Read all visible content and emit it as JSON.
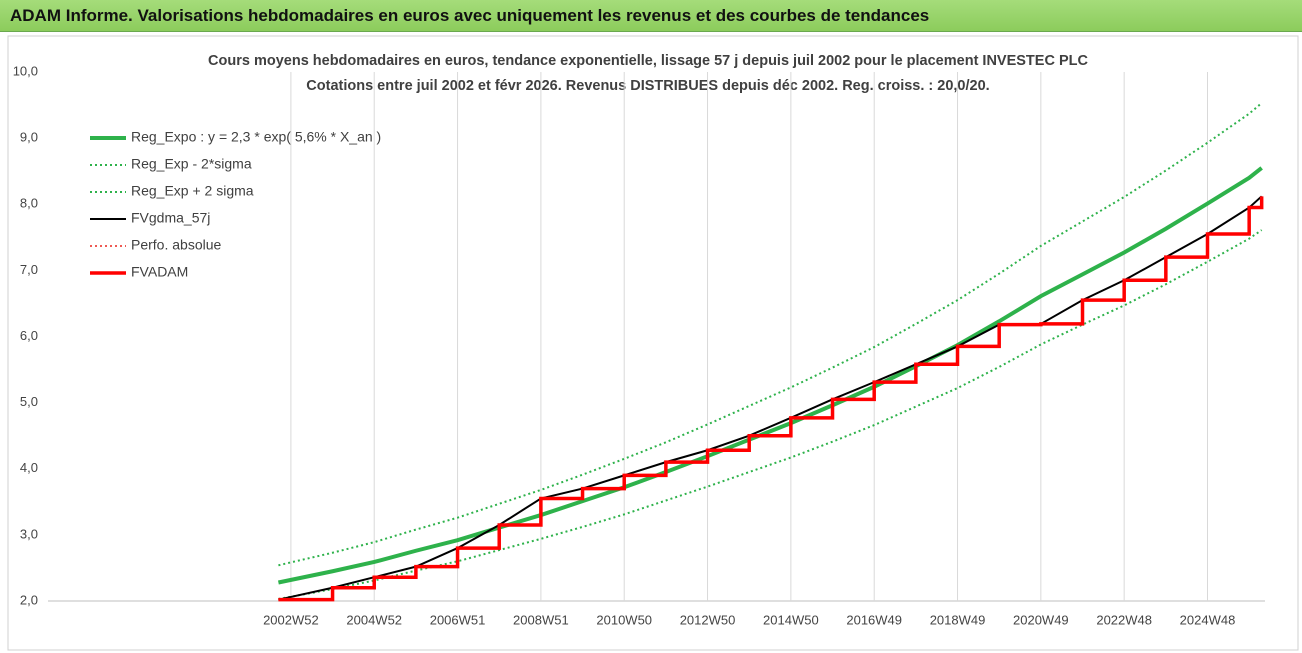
{
  "header": "ADAM Informe. Valorisations hebdomadaires en euros avec uniquement les revenus et des courbes de tendances",
  "chart_data": {
    "type": "line",
    "title": "Cours moyens hebdomadaires en euros, tendance exponentielle, lissage 57 j depuis juil 2002 pour le placement INVESTEC PLC",
    "subtitle": "Cotations entre juil 2002 et févr 2026.  Revenus DISTRIBUES depuis déc 2002. Reg. croiss. : 20,0/20.",
    "x": [
      2002.7,
      2004,
      2005,
      2006,
      2007,
      2008,
      2009,
      2010,
      2011,
      2012,
      2013,
      2014,
      2015,
      2016,
      2017,
      2018,
      2019,
      2020,
      2021,
      2022,
      2023,
      2024,
      2025,
      2026,
      2026.3
    ],
    "xlim": [
      1997.17,
      2026.38
    ],
    "xticks": [
      {
        "value": 2003,
        "label": "2002W52"
      },
      {
        "value": 2005,
        "label": "2004W52"
      },
      {
        "value": 2007,
        "label": "2006W51"
      },
      {
        "value": 2009,
        "label": "2008W51"
      },
      {
        "value": 2011,
        "label": "2010W50"
      },
      {
        "value": 2013,
        "label": "2012W50"
      },
      {
        "value": 2015,
        "label": "2014W50"
      },
      {
        "value": 2017,
        "label": "2016W49"
      },
      {
        "value": 2019,
        "label": "2018W49"
      },
      {
        "value": 2021,
        "label": "2020W49"
      },
      {
        "value": 2023,
        "label": "2022W48"
      },
      {
        "value": 2025,
        "label": "2024W48"
      }
    ],
    "ylim": [
      2,
      10
    ],
    "yticks": [
      {
        "value": 2,
        "label": "2,0"
      },
      {
        "value": 3,
        "label": "3,0"
      },
      {
        "value": 4,
        "label": "4,0"
      },
      {
        "value": 5,
        "label": "5,0"
      },
      {
        "value": 6,
        "label": "6,0"
      },
      {
        "value": 7,
        "label": "7,0"
      },
      {
        "value": 8,
        "label": "8,0"
      },
      {
        "value": 9,
        "label": "9,0"
      },
      {
        "value": 10,
        "label": "10,0"
      }
    ],
    "grid": true,
    "legend": "upper left",
    "series": [
      {
        "name": "Reg_Expo : y = 2,3 * exp( 5,6% *  X_an )",
        "color": "#2eb24b",
        "style": "solid",
        "width": 4,
        "values": [
          2.28,
          2.45,
          2.59,
          2.76,
          2.92,
          3.11,
          3.3,
          3.51,
          3.72,
          3.95,
          4.19,
          4.44,
          4.69,
          4.96,
          5.24,
          5.55,
          5.87,
          6.23,
          6.61,
          6.94,
          7.27,
          7.63,
          8.01,
          8.4,
          8.55
        ]
      },
      {
        "name": "Reg_Exp - 2*sigma",
        "color": "#2eb24b",
        "style": "dotted",
        "width": 2,
        "values": [
          2.03,
          2.18,
          2.31,
          2.46,
          2.6,
          2.77,
          2.94,
          3.12,
          3.31,
          3.52,
          3.73,
          3.95,
          4.17,
          4.41,
          4.66,
          4.94,
          5.22,
          5.54,
          5.88,
          6.18,
          6.47,
          6.79,
          7.13,
          7.48,
          7.61
        ]
      },
      {
        "name": "Reg_Exp + 2 sigma",
        "color": "#2eb24b",
        "style": "dotted",
        "width": 2,
        "values": [
          2.54,
          2.73,
          2.89,
          3.08,
          3.26,
          3.47,
          3.68,
          3.91,
          4.15,
          4.4,
          4.67,
          4.95,
          5.23,
          5.53,
          5.84,
          6.19,
          6.55,
          6.95,
          7.37,
          7.74,
          8.11,
          8.51,
          8.93,
          9.37,
          9.53
        ]
      },
      {
        "name": "FVgdma_57j",
        "color": "#000000",
        "style": "solid",
        "width": 2,
        "values": [
          2.02,
          2.2,
          2.36,
          2.52,
          2.8,
          3.15,
          3.55,
          3.7,
          3.9,
          4.1,
          4.28,
          4.5,
          4.77,
          5.05,
          5.31,
          5.58,
          5.85,
          6.18,
          6.19,
          6.55,
          6.85,
          7.2,
          7.55,
          7.95,
          8.12
        ]
      },
      {
        "name": "Perfo. absolue",
        "color": "#e8231c",
        "style": "dotted",
        "width": 1.5,
        "step": true,
        "values": [
          2.02,
          2.2,
          2.36,
          2.52,
          2.8,
          3.15,
          3.55,
          3.7,
          3.9,
          4.1,
          4.28,
          4.5,
          4.77,
          5.05,
          5.31,
          5.58,
          5.85,
          6.18,
          6.19,
          6.55,
          6.85,
          7.2,
          7.55,
          7.95,
          8.12
        ]
      },
      {
        "name": "FVADAM",
        "color": "#ff0000",
        "style": "solid",
        "width": 3.5,
        "step": true,
        "values": [
          2.02,
          2.2,
          2.36,
          2.52,
          2.8,
          3.15,
          3.55,
          3.7,
          3.9,
          4.1,
          4.28,
          4.5,
          4.77,
          5.05,
          5.31,
          5.58,
          5.85,
          6.18,
          6.19,
          6.55,
          6.85,
          7.2,
          7.55,
          7.95,
          8.12
        ]
      }
    ]
  }
}
